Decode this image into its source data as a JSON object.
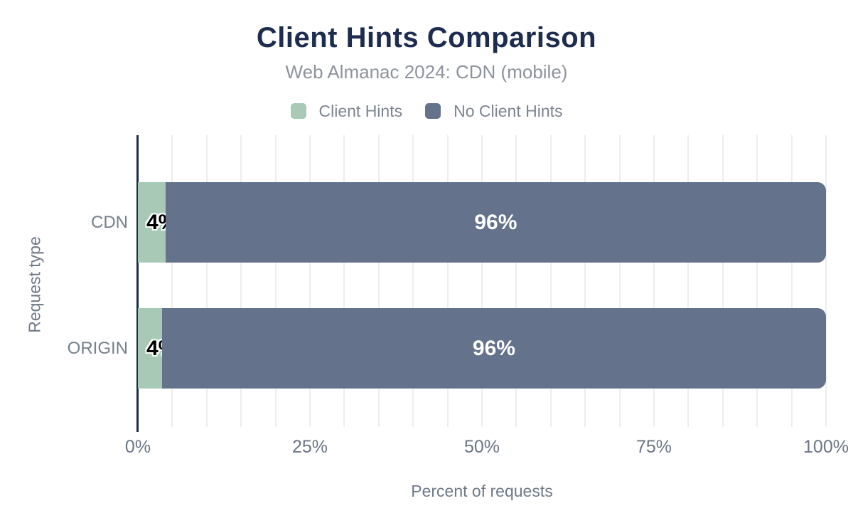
{
  "header": {
    "title": "Client Hints Comparison",
    "subtitle": "Web Almanac 2024: CDN (mobile)"
  },
  "legend": {
    "items": [
      {
        "name": "client-hints",
        "label": "Client Hints",
        "color": "#a7c9b6"
      },
      {
        "name": "no-client-hints",
        "label": "No Client Hints",
        "color": "#64728c"
      }
    ]
  },
  "axes": {
    "x_title": "Percent of requests",
    "y_title": "Request type"
  },
  "chart_data": {
    "type": "bar",
    "orientation": "horizontal",
    "stacked": true,
    "title": "Client Hints Comparison",
    "subtitle": "Web Almanac 2024: CDN (mobile)",
    "categories": [
      "CDN",
      "ORIGIN"
    ],
    "series": [
      {
        "name": "Client Hints",
        "color": "#a7c9b6",
        "values": [
          4,
          3.5
        ],
        "labels": [
          "4%",
          "4%"
        ]
      },
      {
        "name": "No Client Hints",
        "color": "#64728c",
        "values": [
          96,
          96.5
        ],
        "labels": [
          "96%",
          "96%"
        ]
      }
    ],
    "xlabel": "Percent of requests",
    "ylabel": "Request type",
    "xlim": [
      0,
      100
    ],
    "x_ticks": [
      "0%",
      "25%",
      "50%",
      "75%",
      "100%"
    ],
    "x_tick_values": [
      0,
      25,
      50,
      75,
      100
    ],
    "grid": {
      "show": true,
      "interval_percent": 5,
      "color": "#ededed"
    },
    "legend_position": "top",
    "colors": {
      "title": "#1e2d4f",
      "subtitle": "#8e949d",
      "axis_line": "#1c2b4d",
      "tick_text": "#6b7585",
      "category_text": "#767f8c",
      "bar_label_small": "#000000",
      "bar_label_large": "#ffffff"
    }
  }
}
